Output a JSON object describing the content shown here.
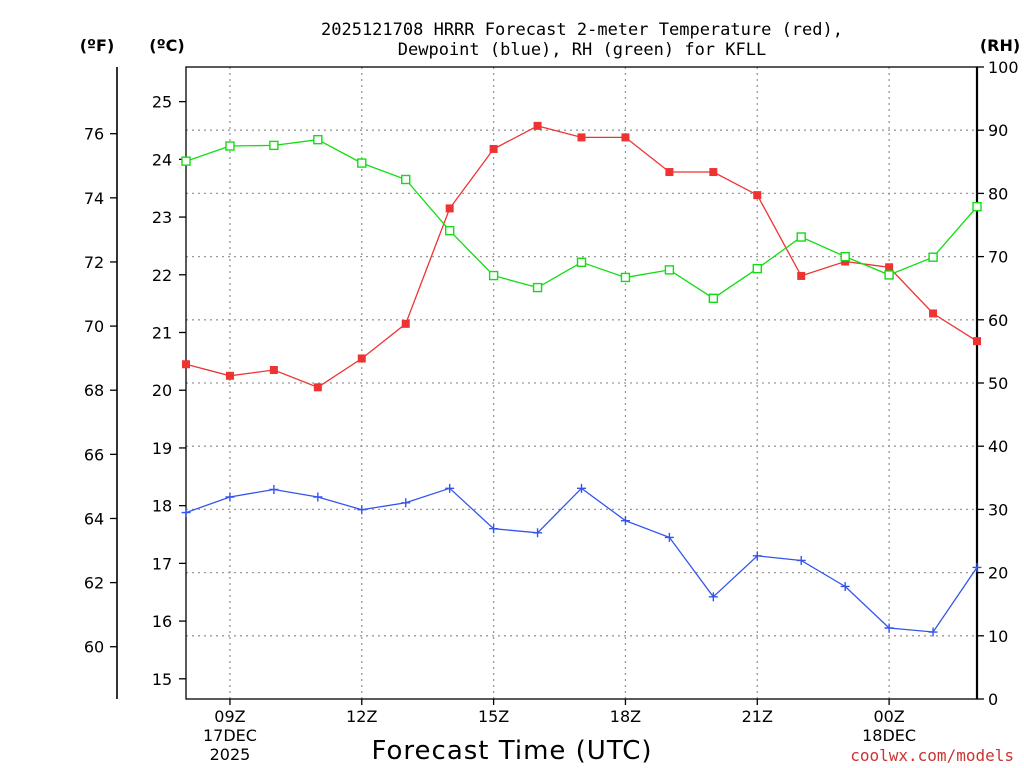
{
  "title_line1": "2025121708 HRRR Forecast 2-meter Temperature (red),",
  "title_line2": "Dewpoint (blue), RH (green) for KFLL",
  "units": {
    "fahrenheit": "(ºF)",
    "celsius": "(ºC)",
    "rh": "(RH)"
  },
  "xlabel": "Forecast Time (UTC)",
  "credit": "coolwx.com/models",
  "colors": {
    "temperature": "#ee3333",
    "dewpoint": "#3355ee",
    "rh": "#11dd11",
    "credit": "#cc3333"
  },
  "chart_data": {
    "type": "line",
    "title": "2025121708 HRRR Forecast 2-meter Temperature (red), Dewpoint (blue), RH (green) for KFLL",
    "x": [
      "08Z",
      "09Z",
      "10Z",
      "11Z",
      "12Z",
      "13Z",
      "14Z",
      "15Z",
      "16Z",
      "17Z",
      "18Z",
      "19Z",
      "20Z",
      "21Z",
      "22Z",
      "23Z",
      "00Z",
      "01Z",
      "02Z"
    ],
    "xlim": [
      8,
      26
    ],
    "x_ticks": [
      {
        "hour": 9,
        "lines": [
          "09Z",
          "17DEC",
          "2025"
        ]
      },
      {
        "hour": 12,
        "lines": [
          "12Z"
        ]
      },
      {
        "hour": 15,
        "lines": [
          "15Z"
        ]
      },
      {
        "hour": 18,
        "lines": [
          "18Z"
        ]
      },
      {
        "hour": 21,
        "lines": [
          "21Z"
        ]
      },
      {
        "hour": 24,
        "lines": [
          "00Z",
          "18DEC"
        ]
      }
    ],
    "y_celsius": {
      "label": "(ºC)",
      "ylim": [
        14.65,
        25.6
      ],
      "ticks": [
        15,
        16,
        17,
        18,
        19,
        20,
        21,
        22,
        23,
        24,
        25
      ]
    },
    "y_fahrenheit": {
      "label": "(ºF)",
      "ticks": [
        60,
        62,
        64,
        66,
        68,
        70,
        72,
        74,
        76
      ]
    },
    "y_rh": {
      "label": "(RH)",
      "ylim": [
        0,
        100
      ],
      "ticks": [
        0,
        10,
        20,
        30,
        40,
        50,
        60,
        70,
        80,
        90,
        100
      ]
    },
    "series": [
      {
        "name": "Temperature",
        "axis": "celsius",
        "color": "#ee3333",
        "marker": "filled-square",
        "values": [
          20.45,
          20.25,
          20.35,
          20.05,
          20.55,
          21.15,
          23.15,
          24.18,
          24.58,
          24.38,
          24.38,
          23.78,
          23.78,
          23.38,
          21.98,
          22.23,
          22.13,
          21.33,
          20.85
        ]
      },
      {
        "name": "Dewpoint",
        "axis": "celsius",
        "color": "#3355ee",
        "marker": "plus",
        "values": [
          17.88,
          18.15,
          18.28,
          18.15,
          17.93,
          18.05,
          18.3,
          17.6,
          17.53,
          18.3,
          17.74,
          17.45,
          16.42,
          17.13,
          17.05,
          16.6,
          15.88,
          15.81,
          16.93
        ]
      },
      {
        "name": "RH",
        "axis": "rh",
        "color": "#11dd11",
        "marker": "open-square",
        "values": [
          85.1,
          87.5,
          87.6,
          88.5,
          84.8,
          82.2,
          74.1,
          67.0,
          65.1,
          69.1,
          66.7,
          67.9,
          63.4,
          68.1,
          73.1,
          70.0,
          67.1,
          69.9,
          77.9
        ]
      }
    ]
  }
}
